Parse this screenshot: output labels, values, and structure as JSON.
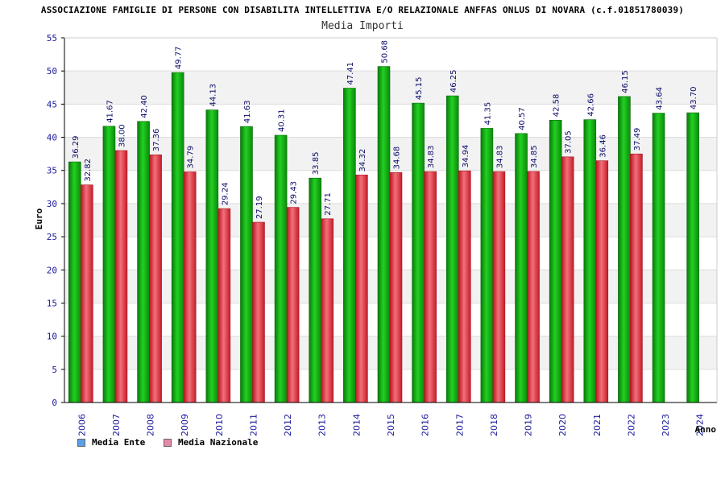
{
  "chart_data": {
    "type": "bar",
    "title": "ASSOCIAZIONE FAMIGLIE DI PERSONE CON DISABILITA INTELLETTIVA E/O RELAZIONALE ANFFAS ONLUS DI NOVARA (c.f.01851780039)",
    "subtitle": "Media Importi",
    "xlabel": "Anno",
    "ylabel": "Euro",
    "ylim": [
      0,
      55
    ],
    "yticks": [
      0,
      5,
      10,
      15,
      20,
      25,
      30,
      35,
      40,
      45,
      50,
      55
    ],
    "grid": true,
    "legend_position": "bottom-left",
    "categories": [
      "2006",
      "2007",
      "2008",
      "2009",
      "2010",
      "2011",
      "2012",
      "2013",
      "2014",
      "2015",
      "2016",
      "2017",
      "2018",
      "2019",
      "2020",
      "2021",
      "2022",
      "2023",
      "2024"
    ],
    "series": [
      {
        "name": "Media Ente",
        "legend_color": "#5a9fe6",
        "bar_color": "#11b011",
        "values": [
          36.29,
          41.67,
          42.4,
          49.77,
          44.13,
          41.63,
          40.31,
          33.85,
          47.41,
          50.68,
          45.15,
          46.25,
          41.35,
          40.57,
          42.58,
          42.66,
          46.15,
          43.64,
          43.7
        ],
        "labels": [
          "36.29",
          "41.67",
          "42.40",
          "49.77",
          "44.13",
          "41.63",
          "40.31",
          "33.85",
          "47.41",
          "50.68",
          "45.15",
          "46.25",
          "41.35",
          "40.57",
          "42.58",
          "42.66",
          "46.15",
          "43.64",
          "43.70"
        ]
      },
      {
        "name": "Media Nazionale",
        "legend_color": "#e48aa8",
        "bar_color": "#e02a38",
        "values": [
          32.82,
          38.0,
          37.36,
          34.79,
          29.24,
          27.19,
          29.43,
          27.71,
          34.32,
          34.68,
          34.83,
          34.94,
          34.83,
          34.85,
          37.05,
          36.46,
          37.49,
          null,
          null
        ],
        "labels": [
          "32.82",
          "38.00",
          "37.36",
          "34.79",
          "29.24",
          "27.19",
          "29.43",
          "27.71",
          "34.32",
          "34.68",
          "34.83",
          "34.94",
          "34.83",
          "34.85",
          "37.05",
          "36.46",
          "37.49",
          null,
          null
        ]
      }
    ]
  }
}
